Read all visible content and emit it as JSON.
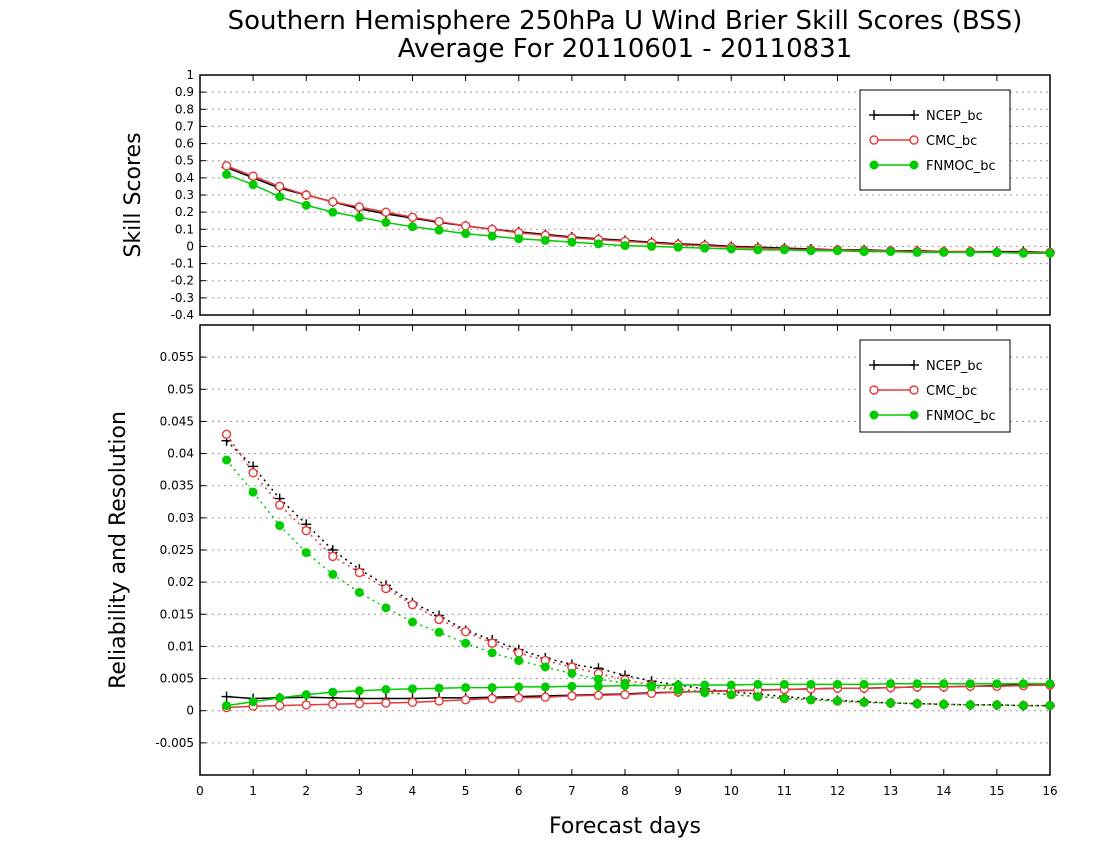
{
  "title": "Southern Hemisphere 250hPa U Wind Brier Skill Scores (BSS)",
  "subtitle": "Average For 20110601 - 20110831",
  "xlabel": "Forecast days",
  "colors": {
    "NCEP_bc": "#000000",
    "CMC_bc": "#e8383b",
    "FNMOC_bc": "#00cc00"
  },
  "chart_data": [
    {
      "type": "line",
      "ylabel": "Skill Scores",
      "xlim": [
        0,
        16
      ],
      "ylim": [
        -0.4,
        1
      ],
      "x_ticks": [
        "0",
        "1",
        "2",
        "3",
        "4",
        "5",
        "6",
        "7",
        "8",
        "9",
        "10",
        "11",
        "12",
        "13",
        "14",
        "15",
        "16"
      ],
      "y_ticks": [
        "-0.4",
        "-0.3",
        "-0.2",
        "-0.1",
        "0",
        "0.1",
        "0.2",
        "0.3",
        "0.4",
        "0.5",
        "0.6",
        "0.7",
        "0.8",
        "0.9",
        "1"
      ],
      "grid": true,
      "legend_position": "top-right",
      "x": [
        0.5,
        1,
        1.5,
        2,
        2.5,
        3,
        3.5,
        4,
        4.5,
        5,
        5.5,
        6,
        6.5,
        7,
        7.5,
        8,
        8.5,
        9,
        9.5,
        10,
        10.5,
        11,
        11.5,
        12,
        12.5,
        13,
        13.5,
        14,
        14.5,
        15,
        15.5,
        16
      ],
      "series": [
        {
          "name": "NCEP_bc",
          "marker": "plus",
          "style": "solid",
          "values": [
            0.46,
            0.4,
            0.34,
            0.3,
            0.26,
            0.22,
            0.19,
            0.165,
            0.14,
            0.12,
            0.1,
            0.085,
            0.07,
            0.055,
            0.045,
            0.035,
            0.025,
            0.015,
            0.01,
            0.0,
            -0.005,
            -0.01,
            -0.015,
            -0.02,
            -0.02,
            -0.025,
            -0.025,
            -0.03,
            -0.03,
            -0.03,
            -0.03,
            -0.035
          ]
        },
        {
          "name": "CMC_bc",
          "marker": "circle",
          "style": "solid",
          "values": [
            0.47,
            0.41,
            0.35,
            0.3,
            0.26,
            0.23,
            0.2,
            0.17,
            0.145,
            0.12,
            0.1,
            0.08,
            0.065,
            0.05,
            0.04,
            0.03,
            0.02,
            0.01,
            0.005,
            -0.005,
            -0.01,
            -0.015,
            -0.02,
            -0.02,
            -0.025,
            -0.025,
            -0.03,
            -0.03,
            -0.03,
            -0.035,
            -0.035,
            -0.035
          ]
        },
        {
          "name": "FNMOC_bc",
          "marker": "dot",
          "style": "solid",
          "values": [
            0.42,
            0.36,
            0.29,
            0.24,
            0.2,
            0.17,
            0.14,
            0.115,
            0.095,
            0.075,
            0.06,
            0.045,
            0.035,
            0.025,
            0.015,
            0.005,
            0.0,
            -0.005,
            -0.01,
            -0.015,
            -0.02,
            -0.02,
            -0.025,
            -0.025,
            -0.03,
            -0.03,
            -0.035,
            -0.035,
            -0.035,
            -0.035,
            -0.04,
            -0.04
          ]
        }
      ]
    },
    {
      "type": "line",
      "ylabel": "Reliability and Resolution",
      "xlim": [
        0,
        16
      ],
      "ylim": [
        -0.01,
        0.06
      ],
      "x_ticks": [
        "0",
        "1",
        "2",
        "3",
        "4",
        "5",
        "6",
        "7",
        "8",
        "9",
        "10",
        "11",
        "12",
        "13",
        "14",
        "15",
        "16"
      ],
      "y_ticks": [
        "-0.005",
        "0",
        "0.005",
        "0.01",
        "0.015",
        "0.02",
        "0.025",
        "0.03",
        "0.035",
        "0.04",
        "0.045",
        "0.05",
        "0.055"
      ],
      "grid": true,
      "legend_position": "top-right",
      "x": [
        0.5,
        1,
        1.5,
        2,
        2.5,
        3,
        3.5,
        4,
        4.5,
        5,
        5.5,
        6,
        6.5,
        7,
        7.5,
        8,
        8.5,
        9,
        9.5,
        10,
        10.5,
        11,
        11.5,
        12,
        12.5,
        13,
        13.5,
        14,
        14.5,
        15,
        15.5,
        16
      ],
      "series": [
        {
          "name": "NCEP_bc",
          "marker": "plus",
          "style": "dotted",
          "group": "reliability",
          "values": [
            0.042,
            0.038,
            0.033,
            0.029,
            0.025,
            0.022,
            0.0195,
            0.0168,
            0.0148,
            0.0125,
            0.011,
            0.0095,
            0.0082,
            0.0072,
            0.0066,
            0.0055,
            0.0046,
            0.004,
            0.0034,
            0.0029,
            0.0026,
            0.0022,
            0.0019,
            0.0016,
            0.0014,
            0.0012,
            0.0011,
            0.001,
            0.0009,
            0.0009,
            0.0008,
            0.0008
          ]
        },
        {
          "name": "NCEP_bc",
          "marker": "plus",
          "style": "solid",
          "group": "resolution",
          "values": [
            0.0022,
            0.0019,
            0.002,
            0.0021,
            0.002,
            0.0019,
            0.0019,
            0.0019,
            0.002,
            0.002,
            0.0021,
            0.0022,
            0.0023,
            0.0024,
            0.0025,
            0.0026,
            0.0028,
            0.0029,
            0.003,
            0.0031,
            0.0032,
            0.0033,
            0.0034,
            0.0035,
            0.0035,
            0.0036,
            0.0037,
            0.0037,
            0.0038,
            0.0039,
            0.004,
            0.004
          ]
        },
        {
          "name": "CMC_bc",
          "marker": "circle",
          "style": "dotted",
          "group": "reliability",
          "values": [
            0.043,
            0.037,
            0.032,
            0.028,
            0.024,
            0.0215,
            0.019,
            0.0165,
            0.0142,
            0.0123,
            0.0105,
            0.009,
            0.0078,
            0.0068,
            0.0058,
            0.0048,
            0.004,
            0.0034,
            0.0029,
            0.0025,
            0.0022,
            0.0019,
            0.0017,
            0.0015,
            0.0013,
            0.0012,
            0.0011,
            0.001,
            0.0009,
            0.0009,
            0.0008,
            0.0008
          ]
        },
        {
          "name": "CMC_bc",
          "marker": "circle",
          "style": "solid",
          "group": "resolution",
          "values": [
            0.0005,
            0.0007,
            0.0008,
            0.0009,
            0.001,
            0.0011,
            0.0012,
            0.0013,
            0.0015,
            0.0017,
            0.0019,
            0.002,
            0.0021,
            0.0023,
            0.0024,
            0.0025,
            0.0027,
            0.0029,
            0.003,
            0.0031,
            0.0032,
            0.0033,
            0.0034,
            0.0035,
            0.0035,
            0.0036,
            0.0037,
            0.0037,
            0.0038,
            0.0038,
            0.0039,
            0.004
          ]
        },
        {
          "name": "FNMOC_bc",
          "marker": "dot",
          "style": "dotted",
          "group": "reliability",
          "values": [
            0.039,
            0.034,
            0.0288,
            0.0246,
            0.0212,
            0.0184,
            0.016,
            0.0138,
            0.0122,
            0.0105,
            0.009,
            0.0078,
            0.0068,
            0.0058,
            0.0049,
            0.0043,
            0.0037,
            0.0032,
            0.0028,
            0.0025,
            0.0022,
            0.0019,
            0.0017,
            0.0015,
            0.0013,
            0.0012,
            0.0011,
            0.001,
            0.0009,
            0.0009,
            0.0008,
            0.0008
          ]
        },
        {
          "name": "FNMOC_bc",
          "marker": "dot",
          "style": "solid",
          "group": "resolution",
          "values": [
            0.0008,
            0.0014,
            0.002,
            0.0025,
            0.0029,
            0.0031,
            0.0033,
            0.0034,
            0.0035,
            0.0036,
            0.0036,
            0.0037,
            0.0037,
            0.0038,
            0.0038,
            0.0039,
            0.0039,
            0.004,
            0.004,
            0.004,
            0.0041,
            0.0041,
            0.0041,
            0.0041,
            0.0041,
            0.0042,
            0.0042,
            0.0042,
            0.0042,
            0.0042,
            0.0042,
            0.0042
          ]
        }
      ]
    }
  ]
}
